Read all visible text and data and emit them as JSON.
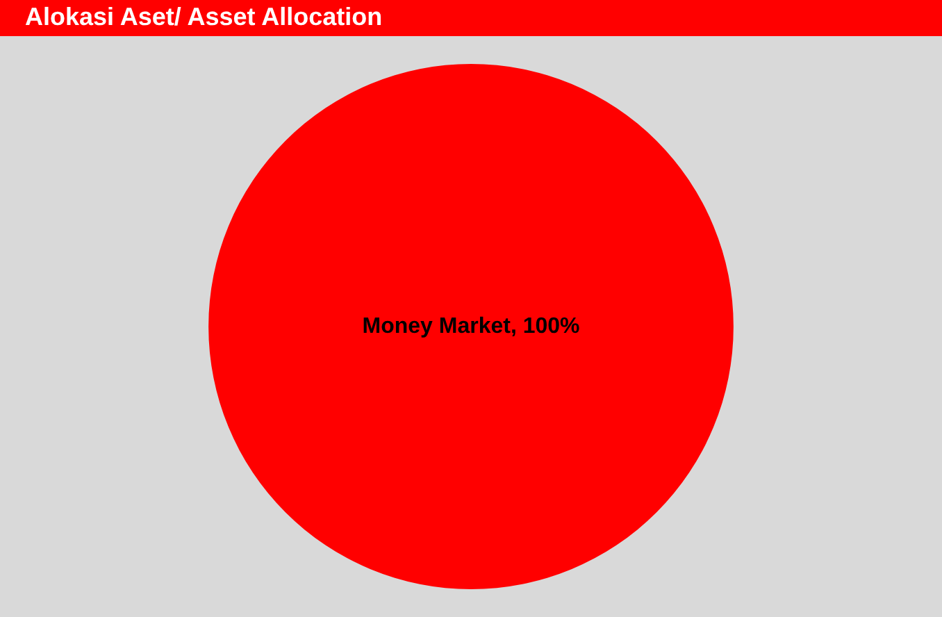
{
  "chart_data": {
    "type": "pie",
    "title": "Alokasi Aset/ Asset Allocation",
    "categories": [
      "Money Market"
    ],
    "values": [
      100
    ],
    "colors": [
      "#ff0000"
    ],
    "value_labels": [
      "100%"
    ],
    "legend": false
  }
}
